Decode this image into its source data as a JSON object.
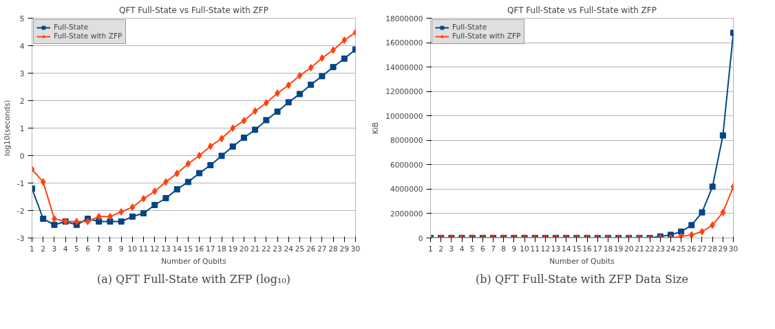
{
  "chart_data": [
    {
      "type": "line",
      "title": "QFT Full-State vs Full-State with ZFP",
      "xlabel": "Number of Qubits",
      "ylabel": "log10(seconds)",
      "x": [
        1,
        2,
        3,
        4,
        5,
        6,
        7,
        8,
        9,
        10,
        11,
        12,
        13,
        14,
        15,
        16,
        17,
        18,
        19,
        20,
        21,
        22,
        23,
        24,
        25,
        26,
        27,
        28,
        29,
        30
      ],
      "xlim": [
        1,
        30
      ],
      "xticks": [
        1,
        2,
        3,
        4,
        5,
        6,
        7,
        8,
        9,
        10,
        11,
        12,
        13,
        14,
        15,
        16,
        17,
        18,
        19,
        20,
        21,
        22,
        23,
        24,
        25,
        26,
        27,
        28,
        29,
        30
      ],
      "ylim": [
        -3,
        5
      ],
      "yticks": [
        -3,
        -2,
        -1,
        0,
        1,
        2,
        3,
        4,
        5
      ],
      "grid": "y",
      "legend": "top left",
      "series": [
        {
          "name": "Full-State",
          "color": "#004586",
          "marker": "square",
          "values": [
            -1.2,
            -2.3,
            -2.52,
            -2.4,
            -2.52,
            -2.3,
            -2.4,
            -2.4,
            -2.4,
            -2.22,
            -2.1,
            -1.8,
            -1.55,
            -1.23,
            -0.96,
            -0.64,
            -0.35,
            -0.01,
            0.33,
            0.65,
            0.94,
            1.29,
            1.6,
            1.94,
            2.24,
            2.58,
            2.89,
            3.22,
            3.53,
            3.86
          ]
        },
        {
          "name": "Full-State with ZFP",
          "color": "#ff420e",
          "marker": "diamond",
          "values": [
            -0.5,
            -0.96,
            -2.3,
            -2.4,
            -2.4,
            -2.4,
            -2.22,
            -2.22,
            -2.05,
            -1.88,
            -1.57,
            -1.3,
            -0.96,
            -0.65,
            -0.3,
            0.0,
            0.34,
            0.62,
            1.0,
            1.27,
            1.62,
            1.92,
            2.27,
            2.56,
            2.91,
            3.2,
            3.55,
            3.84,
            4.2,
            4.48
          ]
        }
      ],
      "annotations": [
        "(a) QFT Full-State with ZFP (log₁₀)"
      ]
    },
    {
      "type": "line",
      "title": "QFT Full-State vs Full-State with ZFP",
      "xlabel": "Number of Qubits",
      "ylabel": "KiB",
      "x": [
        1,
        2,
        3,
        4,
        5,
        6,
        7,
        8,
        9,
        10,
        11,
        12,
        13,
        14,
        15,
        16,
        17,
        18,
        19,
        20,
        21,
        22,
        23,
        24,
        25,
        26,
        27,
        28,
        29,
        30
      ],
      "xlim": [
        1,
        30
      ],
      "xticks": [
        1,
        2,
        3,
        4,
        5,
        6,
        7,
        8,
        9,
        10,
        11,
        12,
        13,
        14,
        15,
        16,
        17,
        18,
        19,
        20,
        21,
        22,
        23,
        24,
        25,
        26,
        27,
        28,
        29,
        30
      ],
      "ylim": [
        0,
        18000000
      ],
      "yticks": [
        0,
        2000000,
        4000000,
        6000000,
        8000000,
        10000000,
        12000000,
        14000000,
        16000000,
        18000000
      ],
      "grid": "y",
      "legend": "top left",
      "series": [
        {
          "name": "Full-State",
          "color": "#004586",
          "marker": "square",
          "values": [
            0,
            0,
            0,
            0,
            0,
            0,
            0,
            0,
            0,
            0,
            0,
            0,
            0,
            0,
            0,
            0,
            0,
            0,
            0,
            0,
            0,
            0,
            130000,
            260000,
            520000,
            1050000,
            2100000,
            4200000,
            8400000,
            16800000
          ]
        },
        {
          "name": "Full-State with ZFP",
          "color": "#ff420e",
          "marker": "diamond",
          "values": [
            0,
            0,
            0,
            0,
            0,
            0,
            0,
            0,
            0,
            0,
            0,
            0,
            0,
            0,
            0,
            0,
            0,
            0,
            0,
            0,
            0,
            0,
            0,
            0,
            130000,
            260000,
            520000,
            1050000,
            2100000,
            4200000
          ]
        }
      ],
      "annotations": [
        "(b) QFT Full-State with ZFP Data Size"
      ]
    }
  ]
}
